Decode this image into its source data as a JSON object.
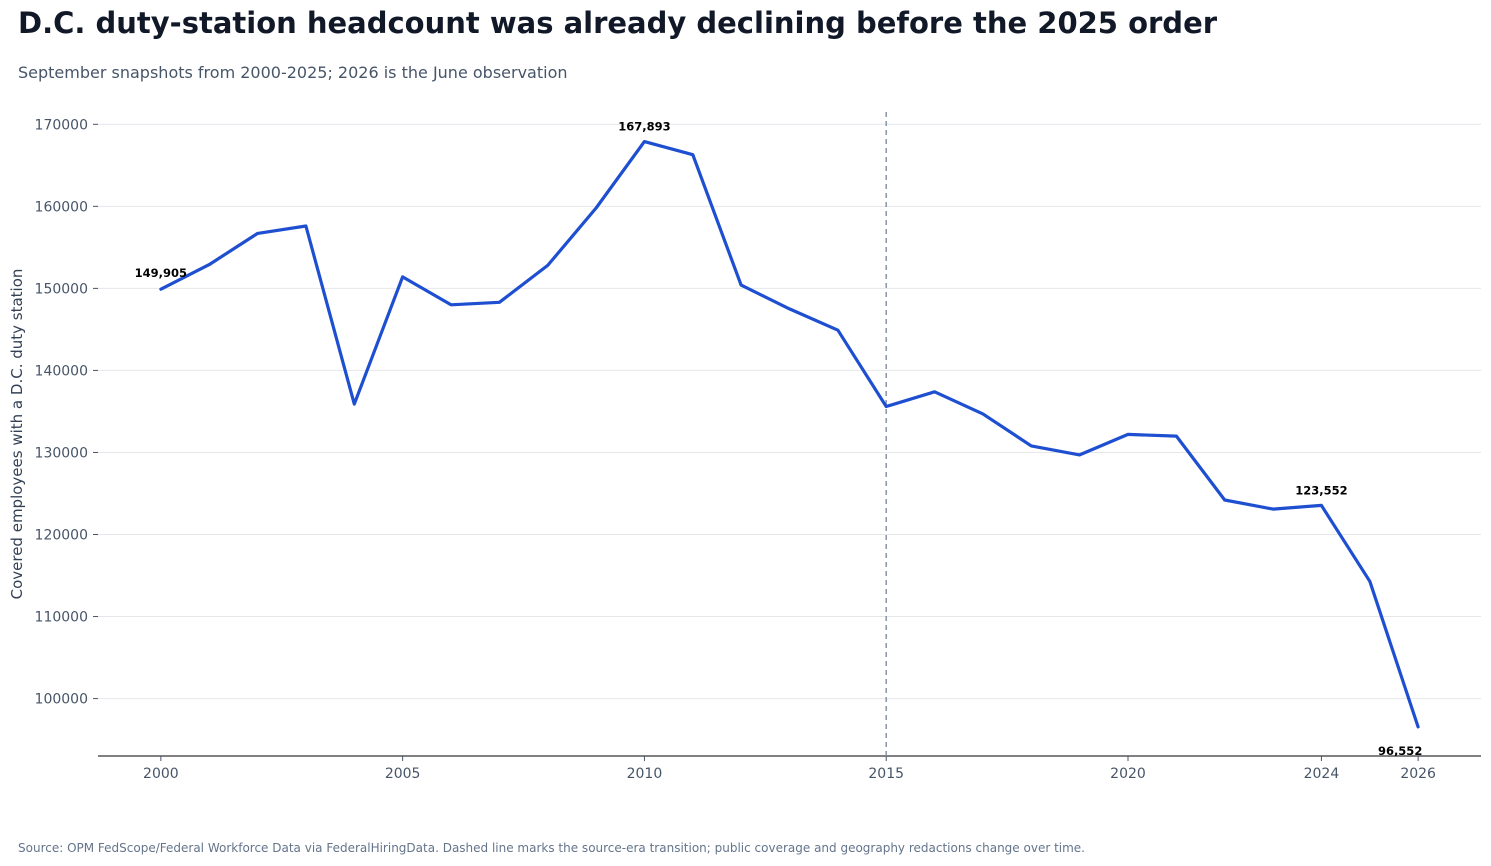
{
  "title": "D.C. duty-station headcount was already declining before the 2025 order",
  "subtitle": "September snapshots from 2000-2025; 2026 is the June observation",
  "source": "Source: OPM FedScope/Federal Workforce Data via FederalHiringData. Dashed line marks the source-era transition; public coverage and geography redactions change over time.",
  "colors": {
    "line": "#1f4fd1",
    "divider": "#8a94a6",
    "grid": "#e5e7eb",
    "axis": "#000000"
  },
  "chart_data": {
    "type": "line",
    "title": "D.C. duty-station headcount was already declining before the 2025 order",
    "subtitle": "September snapshots from 2000-2025; 2026 is the June observation",
    "xlabel": "",
    "ylabel": "Covered employees with a D.C. duty station",
    "xlim": [
      1998.7,
      2027.3
    ],
    "ylim": [
      93000,
      171500
    ],
    "x_ticks": [
      2000,
      2005,
      2010,
      2015,
      2020,
      2024,
      2026
    ],
    "y_ticks": [
      100000,
      110000,
      120000,
      130000,
      140000,
      150000,
      160000,
      170000
    ],
    "grid": "horizontal",
    "vertical_marker": {
      "x": 2015,
      "style": "dashed"
    },
    "series": [
      {
        "x": [
          2000,
          2001,
          2002,
          2003,
          2004,
          2005,
          2006,
          2007,
          2008,
          2009,
          2010,
          2011,
          2012,
          2013,
          2014,
          2015,
          2016,
          2017,
          2018,
          2019,
          2020,
          2021,
          2022,
          2023,
          2024,
          2025,
          2026
        ],
        "values": [
          149905,
          152900,
          156700,
          157600,
          135900,
          151400,
          148000,
          148300,
          152800,
          159800,
          167893,
          166300,
          150400,
          147500,
          144900,
          135600,
          137400,
          134700,
          130800,
          129700,
          132200,
          132000,
          124200,
          123100,
          123552,
          114300,
          96552
        ]
      }
    ],
    "annotations": [
      {
        "x": 2000,
        "y": 149905,
        "text": "149,905"
      },
      {
        "x": 2010,
        "y": 167893,
        "text": "167,893"
      },
      {
        "x": 2024,
        "y": 123552,
        "text": "123,552"
      },
      {
        "x": 2026,
        "y": 96552,
        "text": "96,552"
      }
    ]
  }
}
